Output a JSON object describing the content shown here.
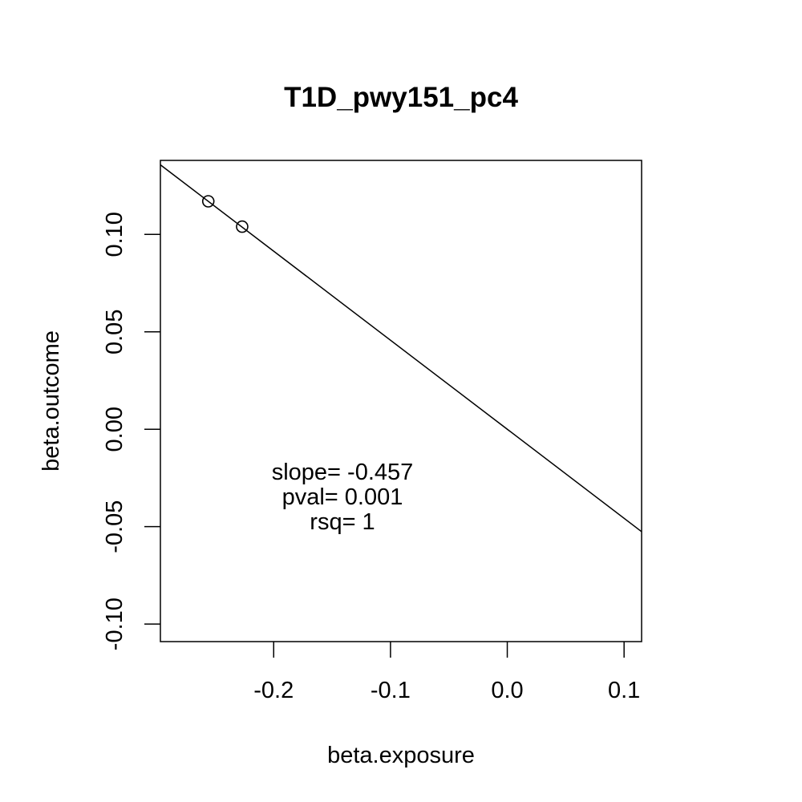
{
  "chart_data": {
    "type": "scatter",
    "title": "T1D_pwy151_pc4",
    "xlabel": "beta.exposure",
    "ylabel": "beta.outcome",
    "xlim": [
      -0.297,
      0.115
    ],
    "ylim": [
      -0.109,
      0.138
    ],
    "x_ticks": [
      -0.2,
      -0.1,
      0.0,
      0.1
    ],
    "x_tick_labels": [
      "-0.2",
      "-0.1",
      "0.0",
      "0.1"
    ],
    "y_ticks": [
      -0.1,
      -0.05,
      0.0,
      0.05,
      0.1
    ],
    "y_tick_labels": [
      "-0.10",
      "-0.05",
      "0.00",
      "0.05",
      "0.10"
    ],
    "points": [
      {
        "x": -0.256,
        "y": 0.117
      },
      {
        "x": -0.227,
        "y": 0.104
      }
    ],
    "regression_line": {
      "slope": -0.457,
      "intercept": 0.0
    },
    "annotations": [
      "slope= -0.457",
      "pval= 0.001",
      "rsq= 1"
    ],
    "grid": false,
    "legend": "none"
  }
}
